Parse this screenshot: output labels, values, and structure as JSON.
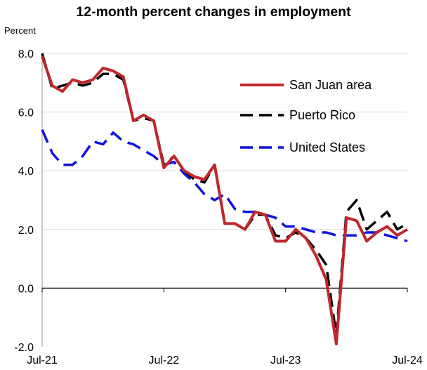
{
  "chart_data": {
    "type": "line",
    "title": "12-month percent changes in employment",
    "ylabel": "Percent",
    "ylim": [
      -2.0,
      8.0
    ],
    "yticks": [
      "8.0",
      "6.0",
      "4.0",
      "2.0",
      "0.0",
      "-2.0"
    ],
    "ytick_values": [
      8,
      6,
      4,
      2,
      0,
      -2
    ],
    "xticks": [
      "Jul-21",
      "Jul-22",
      "Jul-23",
      "Jul-24"
    ],
    "xtick_positions": [
      0,
      12,
      24,
      36
    ],
    "grid": "horizontal",
    "legend_position": "top-right",
    "x": [
      "Jul-21",
      "Aug-21",
      "Sep-21",
      "Oct-21",
      "Nov-21",
      "Dec-21",
      "Jan-22",
      "Feb-22",
      "Mar-22",
      "Apr-22",
      "May-22",
      "Jun-22",
      "Jul-22",
      "Aug-22",
      "Sep-22",
      "Oct-22",
      "Nov-22",
      "Dec-22",
      "Jan-23",
      "Feb-23",
      "Mar-23",
      "Apr-23",
      "May-23",
      "Jun-23",
      "Jul-23",
      "Aug-23",
      "Sep-23",
      "Oct-23",
      "Nov-23",
      "Dec-23",
      "Jan-24",
      "Feb-24",
      "Mar-24",
      "Apr-24",
      "May-24",
      "Jun-24",
      "Jul-24"
    ],
    "series": [
      {
        "name": "San Juan area",
        "color": "#c0272d",
        "dash": "solid",
        "values": [
          7.9,
          6.9,
          6.7,
          7.1,
          7.0,
          7.1,
          7.5,
          7.4,
          7.2,
          5.7,
          5.9,
          5.7,
          4.1,
          4.5,
          4.0,
          3.8,
          3.7,
          4.2,
          2.2,
          2.2,
          2.0,
          2.6,
          2.5,
          1.6,
          1.6,
          2.0,
          1.7,
          1.1,
          0.3,
          -1.9,
          2.4,
          2.3,
          1.6,
          1.9,
          2.1,
          1.8,
          2.0
        ]
      },
      {
        "name": "Puerto Rico",
        "color": "#000000",
        "dash": "long",
        "values": [
          8.0,
          6.8,
          6.9,
          7.0,
          6.9,
          7.0,
          7.3,
          7.3,
          7.1,
          5.7,
          5.8,
          5.7,
          4.2,
          4.5,
          4.0,
          3.7,
          3.6,
          4.2,
          2.2,
          2.2,
          2.0,
          2.5,
          2.5,
          1.8,
          1.7,
          1.9,
          1.7,
          1.3,
          0.8,
          -1.6,
          2.6,
          3.0,
          2.0,
          2.3,
          2.6,
          2.0,
          2.2
        ]
      },
      {
        "name": "United States",
        "color": "#1010e0",
        "dash": "long",
        "values": [
          5.4,
          4.6,
          4.2,
          4.2,
          4.5,
          5.0,
          4.9,
          5.3,
          5.0,
          4.9,
          4.7,
          4.5,
          4.2,
          4.3,
          3.9,
          3.6,
          3.2,
          3.0,
          3.2,
          2.7,
          2.6,
          2.6,
          2.5,
          2.4,
          2.1,
          2.1,
          2.0,
          1.9,
          1.9,
          1.8,
          1.8,
          1.8,
          1.9,
          1.9,
          1.8,
          1.7,
          1.6
        ]
      }
    ]
  }
}
